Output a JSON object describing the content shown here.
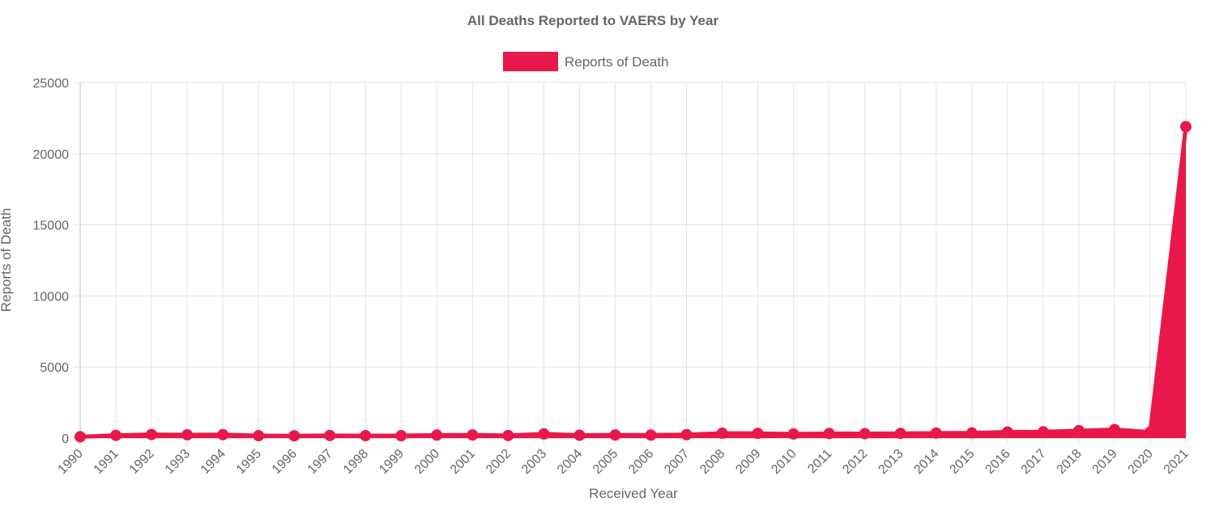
{
  "chart_data": {
    "type": "area",
    "title": "All Deaths Reported to VAERS by Year",
    "xlabel": "Received Year",
    "ylabel": "Reports of Death",
    "legend_position": "top-center",
    "grid": true,
    "ylim": [
      0,
      25000
    ],
    "yticks": [
      0,
      5000,
      10000,
      15000,
      20000,
      25000
    ],
    "categories": [
      "1990",
      "1991",
      "1992",
      "1993",
      "1994",
      "1995",
      "1996",
      "1997",
      "1998",
      "1999",
      "2000",
      "2001",
      "2002",
      "2003",
      "2004",
      "2005",
      "2006",
      "2007",
      "2008",
      "2009",
      "2010",
      "2011",
      "2012",
      "2013",
      "2014",
      "2015",
      "2016",
      "2017",
      "2018",
      "2019",
      "2020",
      "2021"
    ],
    "series": [
      {
        "name": "Reports of Death",
        "color": "#E8194A",
        "values": [
          90,
          190,
          250,
          230,
          240,
          170,
          160,
          180,
          170,
          170,
          210,
          220,
          180,
          290,
          200,
          220,
          210,
          240,
          340,
          330,
          290,
          320,
          310,
          330,
          350,
          360,
          430,
          440,
          520,
          600,
          420,
          21900
        ]
      }
    ]
  }
}
